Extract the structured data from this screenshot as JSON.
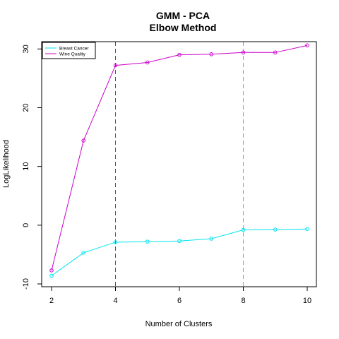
{
  "chart_data": {
    "type": "line",
    "title": "GMM - PCA",
    "subtitle": "Elbow Method",
    "xlabel": "Number of Clusters",
    "ylabel": "LogLikelihood",
    "x": [
      2,
      3,
      4,
      5,
      6,
      7,
      8,
      9,
      10
    ],
    "xlim": [
      2,
      10
    ],
    "ylim": [
      -10,
      31
    ],
    "xticks": [
      2,
      4,
      6,
      8,
      10
    ],
    "yticks": [
      -10,
      0,
      10,
      20,
      30
    ],
    "grid": false,
    "legend_position": "top-left",
    "series": [
      {
        "name": "Breast Cancer",
        "color": "#00E5EE",
        "values": [
          -8.6,
          -4.7,
          -2.9,
          -2.8,
          -2.7,
          -2.3,
          -0.8,
          -0.75,
          -0.65
        ]
      },
      {
        "name": "Wine Quality",
        "color": "#CC00CC",
        "values": [
          -7.7,
          14.4,
          27.2,
          27.7,
          29.0,
          29.1,
          29.4,
          29.4,
          30.6
        ]
      }
    ],
    "vlines": [
      {
        "x": 4,
        "color": "#CC00CC",
        "style": "dashed"
      },
      {
        "x": 8,
        "color": "#00E5EE",
        "style": "dashed"
      }
    ]
  }
}
